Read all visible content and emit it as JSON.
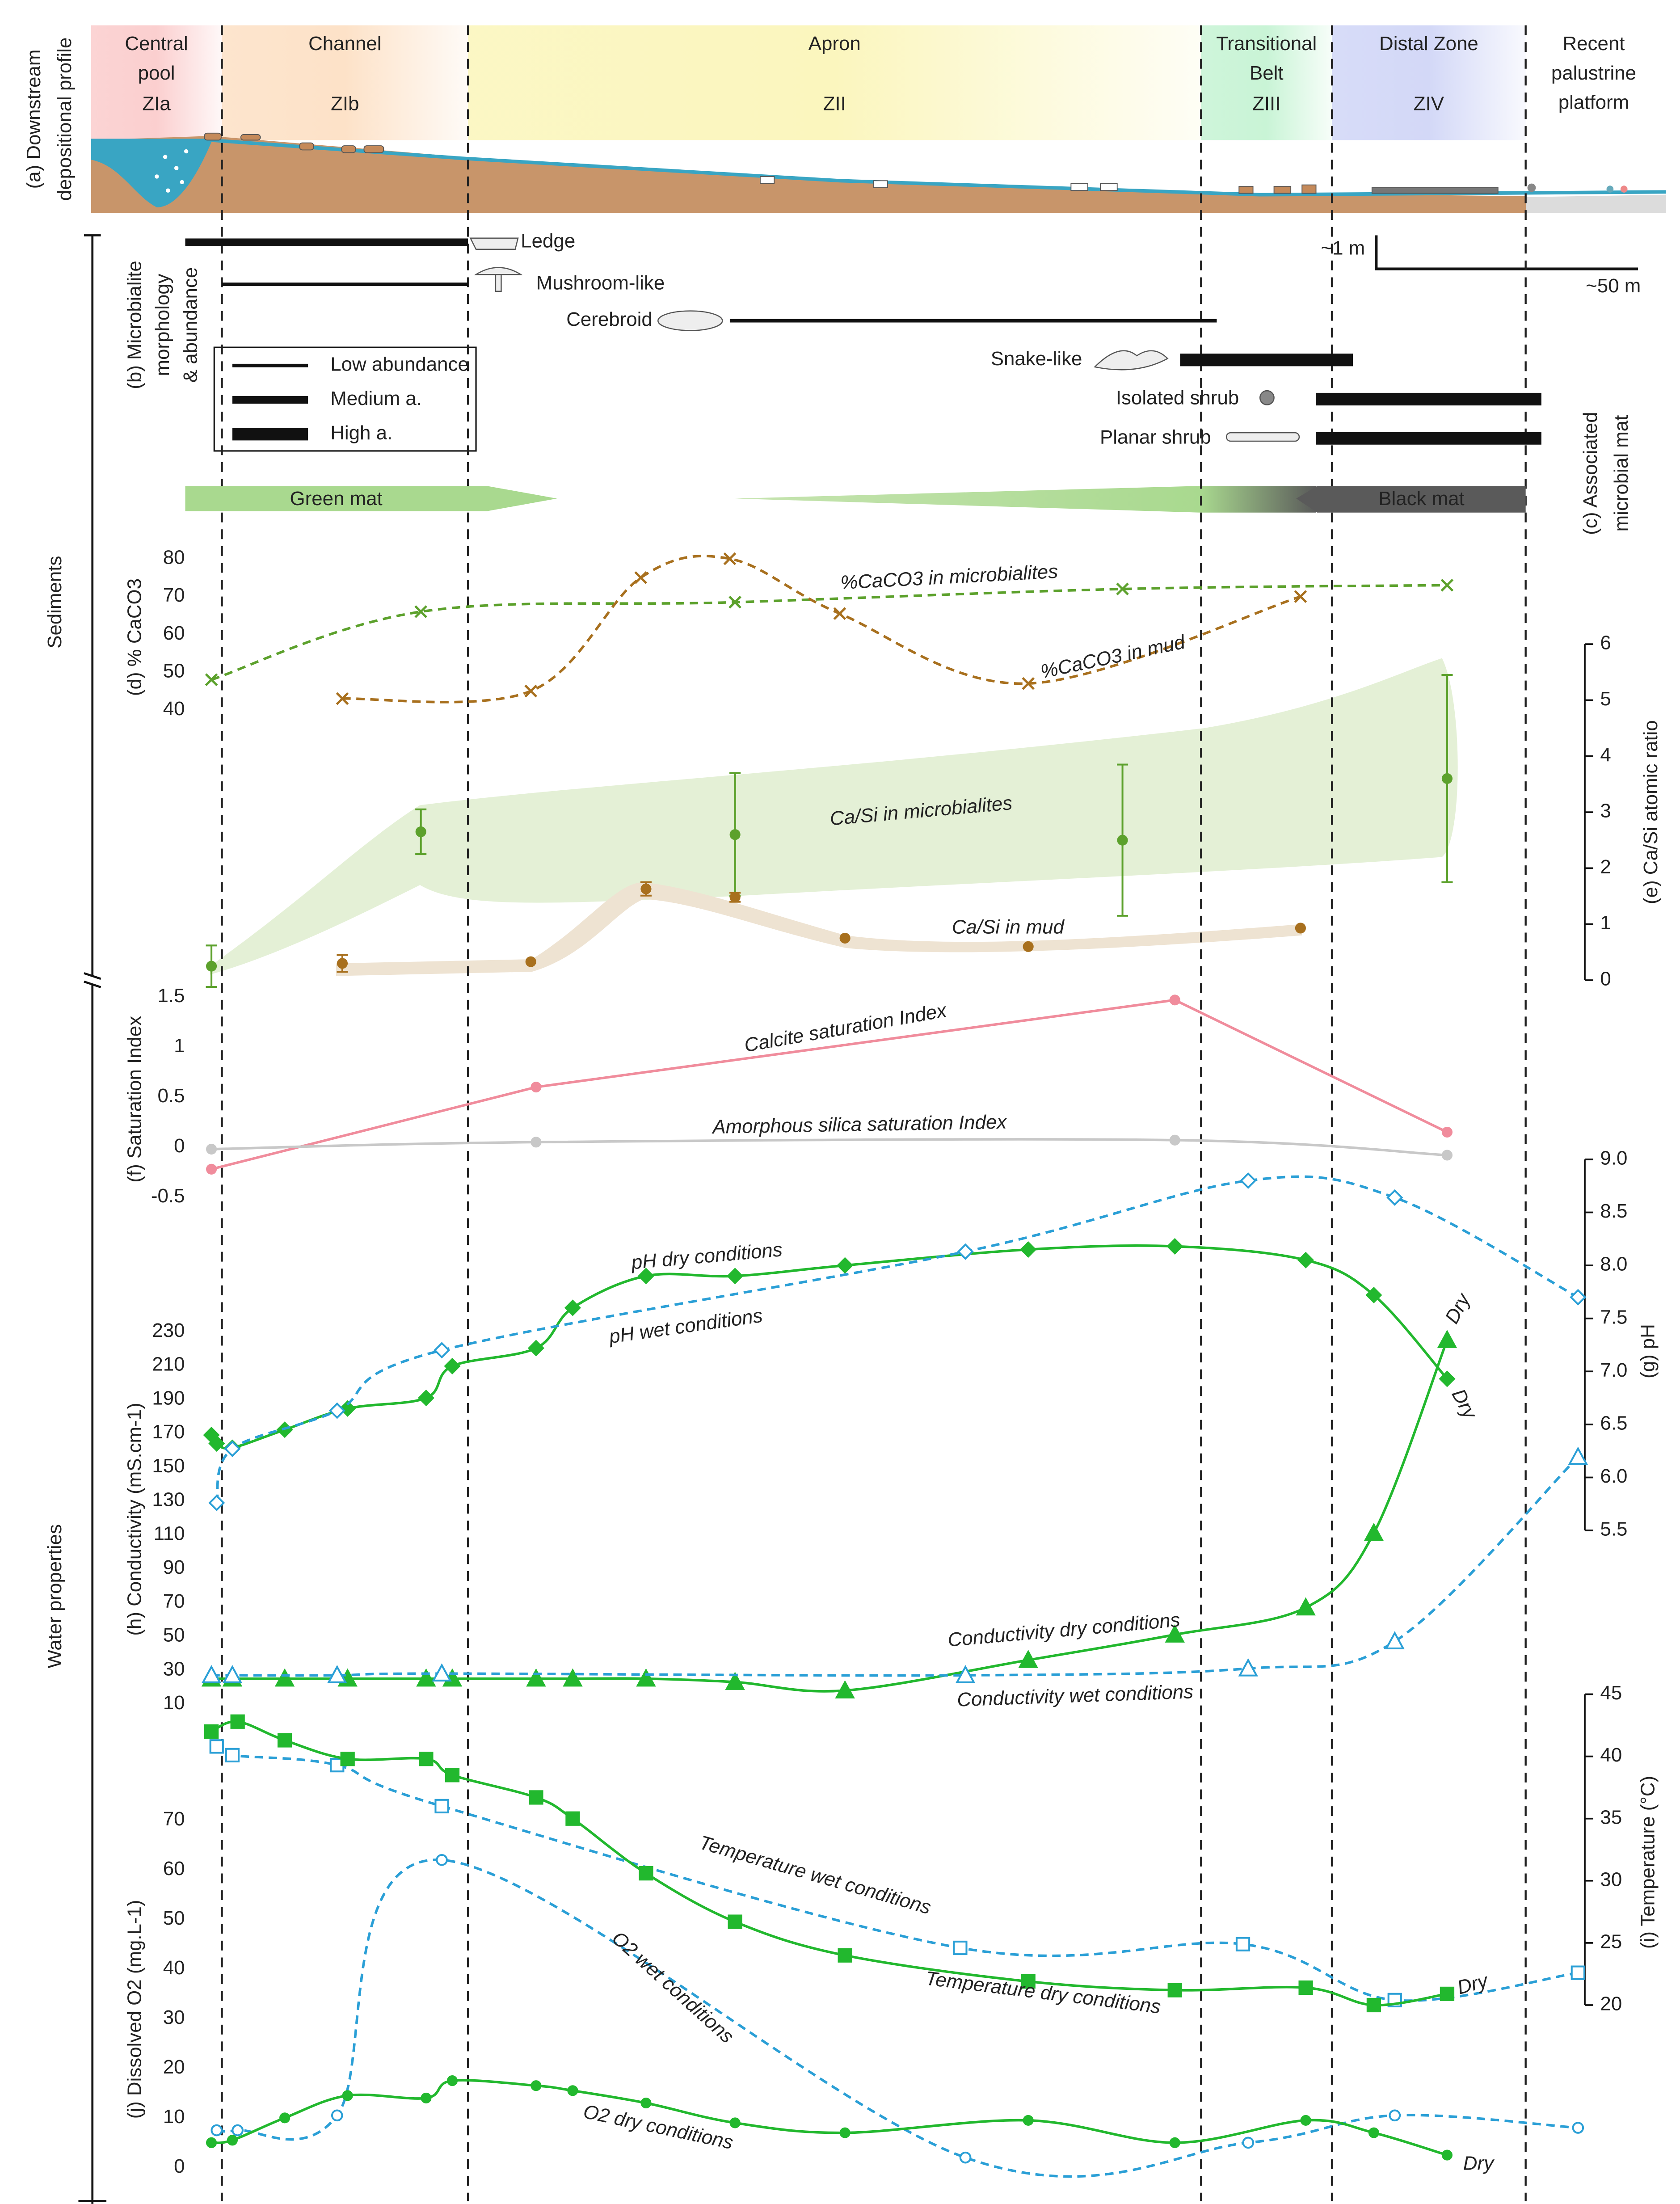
{
  "profile": {
    "title": [
      "(a) Downstream",
      "depositional profile"
    ],
    "xlim": [
      0,
      300
    ],
    "zones": [
      {
        "name": [
          "Central",
          "pool"
        ],
        "code": "ZIa",
        "color": "#fbcfcf",
        "range": [
          0,
          25
        ]
      },
      {
        "name": [
          "Channel"
        ],
        "code": "ZIb",
        "color": "#fde2c8",
        "range": [
          25,
          72
        ]
      },
      {
        "name": [
          "Apron"
        ],
        "code": "ZII",
        "color": "#fbf6be",
        "range": [
          72,
          212
        ]
      },
      {
        "name": [
          "Transitional",
          "Belt"
        ],
        "code": "ZIII",
        "color": "#c9f4d6",
        "range": [
          212,
          237
        ]
      },
      {
        "name": [
          "Distal Zone"
        ],
        "code": "ZIV",
        "color": "#d3d8f7",
        "range": [
          237,
          274
        ]
      },
      {
        "name": [
          "Recent",
          "palustrine",
          "platform"
        ],
        "range": [
          274,
          300
        ]
      }
    ],
    "scale": {
      "vertical": "~1 m",
      "horizontal": "~50 m"
    }
  },
  "sections": [
    "Sediments",
    "Water properties"
  ],
  "microbialites": {
    "title": [
      "(b) Microbialite",
      "morphology",
      "& abundance"
    ],
    "legend": [
      {
        "label": "Low abundance",
        "abundance": "low"
      },
      {
        "label": "Medium a.",
        "abundance": "medium"
      },
      {
        "label": "High a.",
        "abundance": "high"
      }
    ],
    "items": [
      {
        "name": "Ledge",
        "abundance": "medium",
        "range": [
          18,
          72
        ]
      },
      {
        "name": "Mushroom-like",
        "abundance": "low",
        "range": [
          25,
          72
        ]
      },
      {
        "name": "Cerebroid",
        "abundance": "low",
        "range": [
          122,
          215
        ]
      },
      {
        "name": "Snake-like",
        "abundance": "high",
        "range": [
          208,
          241
        ]
      },
      {
        "name": "Isolated shrub",
        "abundance": "high",
        "range": [
          234,
          277
        ]
      },
      {
        "name": "Planar shrub",
        "abundance": "high",
        "range": [
          234,
          277
        ]
      }
    ]
  },
  "mats": {
    "title": [
      "(c) Associated",
      "microbial mat"
    ],
    "items": [
      {
        "name": "Green mat",
        "color": "#a9d98f",
        "range": [
          18,
          89
        ]
      },
      {
        "name": "Black mat",
        "color": "#5a5a5a",
        "range": [
          212,
          274
        ]
      }
    ]
  },
  "chart_data": [
    {
      "type": "line",
      "ylabel": "(d) % CaCO3",
      "ylim": [
        40,
        80
      ],
      "yticks": [
        40,
        50,
        60,
        70,
        80
      ],
      "y2label": "(e) Ca/Si atomic ratio",
      "y2lim": [
        0,
        6
      ],
      "y2ticks": [
        0,
        1,
        2,
        3,
        4,
        5,
        6
      ],
      "series": [
        {
          "name": "%CaCO3 in microbialites",
          "color": "#5ca12c",
          "marker": "x",
          "dashed": true,
          "smooth": true,
          "x": [
            23,
            63,
            123,
            197,
            259
          ],
          "values": [
            48,
            66,
            68.5,
            72,
            73
          ]
        },
        {
          "name": "%CaCO3 in mud",
          "color": "#a8701e",
          "marker": "x",
          "dashed": true,
          "smooth": true,
          "x": [
            48,
            84,
            105,
            122,
            143,
            179,
            231
          ],
          "values": [
            43,
            45,
            75,
            80,
            65.5,
            47,
            70
          ]
        },
        {
          "name": "Ca/Si in microbialites",
          "color": "#5ca12c",
          "marker": "circle",
          "line": false,
          "axis": "y2",
          "x": [
            23,
            63,
            123,
            197,
            259
          ],
          "values": [
            0.25,
            2.65,
            2.6,
            2.5,
            3.6
          ],
          "errors": [
            0.37,
            0.4,
            1.1,
            1.35,
            1.85
          ]
        },
        {
          "name": "Ca/Si in mud",
          "color": "#a8701e",
          "marker": "circle",
          "line": false,
          "axis": "y2",
          "x": [
            48,
            84,
            106,
            123,
            144,
            179,
            231
          ],
          "values": [
            0.3,
            0.33,
            1.63,
            1.48,
            0.75,
            0.6,
            0.93
          ],
          "errors": [
            0.15,
            null,
            0.12,
            0.08,
            null,
            null,
            null
          ]
        }
      ]
    },
    {
      "type": "line",
      "ylabel": "(f) Saturation Index",
      "ylim": [
        -0.5,
        1.5
      ],
      "yticks": [
        -0.5,
        0,
        0.5,
        1,
        1.5
      ],
      "series": [
        {
          "name": "Calcite saturation Index",
          "color": "#f08c9c",
          "marker": "circle",
          "smooth": false,
          "x": [
            23,
            85,
            207,
            259
          ],
          "values": [
            -0.22,
            0.6,
            1.47,
            0.15
          ]
        },
        {
          "name": "Amorphous silica saturation Index",
          "color": "#c8c8c8",
          "marker": "circle",
          "smooth": true,
          "x": [
            23,
            85,
            207,
            259
          ],
          "values": [
            -0.02,
            0.05,
            0.07,
            -0.08
          ]
        }
      ]
    },
    {
      "type": "line",
      "ylabel": "(h) Conductivity (mS.cm-1)",
      "ylim": [
        10,
        230
      ],
      "yticks": [
        10,
        30,
        50,
        70,
        90,
        110,
        130,
        150,
        170,
        190,
        210,
        230
      ],
      "y2label": "(g) pH",
      "y2lim": [
        5.5,
        9
      ],
      "y2ticks": [
        5.5,
        {
          "value": 6,
          "label": "6.0"
        },
        6.5,
        {
          "value": 7,
          "label": "7.0"
        },
        7.5,
        {
          "value": 8,
          "label": "8.0"
        },
        8.5,
        {
          "value": 9,
          "label": "9.0"
        }
      ],
      "series": [
        {
          "name": "pH dry conditions",
          "color": "#22b82e",
          "marker": "diamond",
          "filled": true,
          "smooth": true,
          "axis": "y2",
          "x": [
            23,
            24,
            27,
            37,
            49,
            64,
            69,
            85,
            92,
            106,
            123,
            144,
            179,
            207,
            232,
            245,
            259
          ],
          "values": [
            6.4,
            6.32,
            6.28,
            6.45,
            6.65,
            6.75,
            7.05,
            7.22,
            7.6,
            7.9,
            7.9,
            8.0,
            8.15,
            8.18,
            8.05,
            7.72,
            6.93
          ]
        },
        {
          "name": "pH wet conditions",
          "color": "#2a9fd6",
          "marker": "diamond",
          "filled": false,
          "dashed": true,
          "smooth": true,
          "axis": "y2",
          "x": [
            24,
            27,
            47,
            67,
            167,
            221,
            249,
            284
          ],
          "values": [
            5.76,
            6.27,
            6.63,
            7.2,
            8.13,
            8.8,
            8.64,
            7.7
          ]
        },
        {
          "name": "Conductivity dry conditions",
          "color": "#22b82e",
          "marker": "triangle",
          "filled": true,
          "smooth": true,
          "x": [
            23,
            27,
            37,
            49,
            64,
            69,
            85,
            92,
            106,
            123,
            144,
            179,
            207,
            232,
            245,
            259
          ],
          "values": [
            25,
            25,
            25,
            25,
            25,
            25,
            25,
            25,
            25,
            23,
            18,
            36,
            51,
            67,
            111,
            225
          ]
        },
        {
          "name": "Conductivity wet conditions",
          "color": "#2a9fd6",
          "marker": "triangle",
          "filled": false,
          "dashed": true,
          "smooth": true,
          "x": [
            23,
            27,
            47,
            67,
            167,
            221,
            249,
            284
          ],
          "values": [
            27,
            27,
            27,
            28,
            27,
            31,
            47,
            156
          ]
        }
      ],
      "annotations": [
        {
          "text": "Dry"
        },
        {
          "text": "Dry"
        }
      ]
    },
    {
      "type": "line",
      "ylabel": "(j) Dissolved O2 (mg.L-1)",
      "ylim": [
        0,
        70
      ],
      "yticks": [
        0,
        10,
        20,
        30,
        40,
        50,
        60,
        70
      ],
      "y2label": "(i) Temperature (°C)",
      "y2lim": [
        20,
        45
      ],
      "y2ticks": [
        20,
        25,
        30,
        35,
        40,
        45
      ],
      "series": [
        {
          "name": "Temperature wet conditions",
          "color": "#2a9fd6",
          "marker": "square",
          "filled": false,
          "dashed": true,
          "smooth": true,
          "axis": "y2",
          "x": [
            24,
            27,
            47,
            67,
            166,
            220,
            249,
            284
          ],
          "values": [
            40.8,
            40.1,
            39.3,
            36,
            24.6,
            24.9,
            20.4,
            22.6
          ]
        },
        {
          "name": "Temperature dry conditions",
          "color": "#22b82e",
          "marker": "square",
          "filled": true,
          "smooth": true,
          "axis": "y2",
          "x": [
            23,
            28,
            37,
            49,
            64,
            69,
            85,
            92,
            106,
            123,
            144,
            179,
            207,
            232,
            245,
            259
          ],
          "values": [
            42,
            42.8,
            41.3,
            39.8,
            39.8,
            38.5,
            36.7,
            35,
            30.6,
            26.7,
            24,
            21.9,
            21.2,
            21.4,
            20,
            20.9
          ]
        },
        {
          "name": "O2 wet conditions",
          "color": "#2a9fd6",
          "marker": "circle",
          "filled": false,
          "dashed": true,
          "smooth": true,
          "x": [
            24,
            28,
            47,
            67,
            167,
            221,
            249,
            284
          ],
          "values": [
            7.5,
            7.5,
            10.5,
            62,
            2,
            5,
            10.5,
            8
          ]
        },
        {
          "name": "O2 dry conditions",
          "color": "#22b82e",
          "marker": "circle",
          "filled": true,
          "smooth": true,
          "x": [
            23,
            27,
            37,
            49,
            64,
            69,
            85,
            92,
            106,
            123,
            144,
            179,
            207,
            232,
            245,
            259
          ],
          "values": [
            5,
            5.5,
            10,
            14.5,
            14,
            17.5,
            16.5,
            15.5,
            13,
            9,
            7,
            9.5,
            5,
            9.5,
            7,
            2.5
          ]
        }
      ],
      "annotations": [
        {
          "text": "Dry"
        },
        {
          "text": "Dry"
        }
      ]
    }
  ]
}
